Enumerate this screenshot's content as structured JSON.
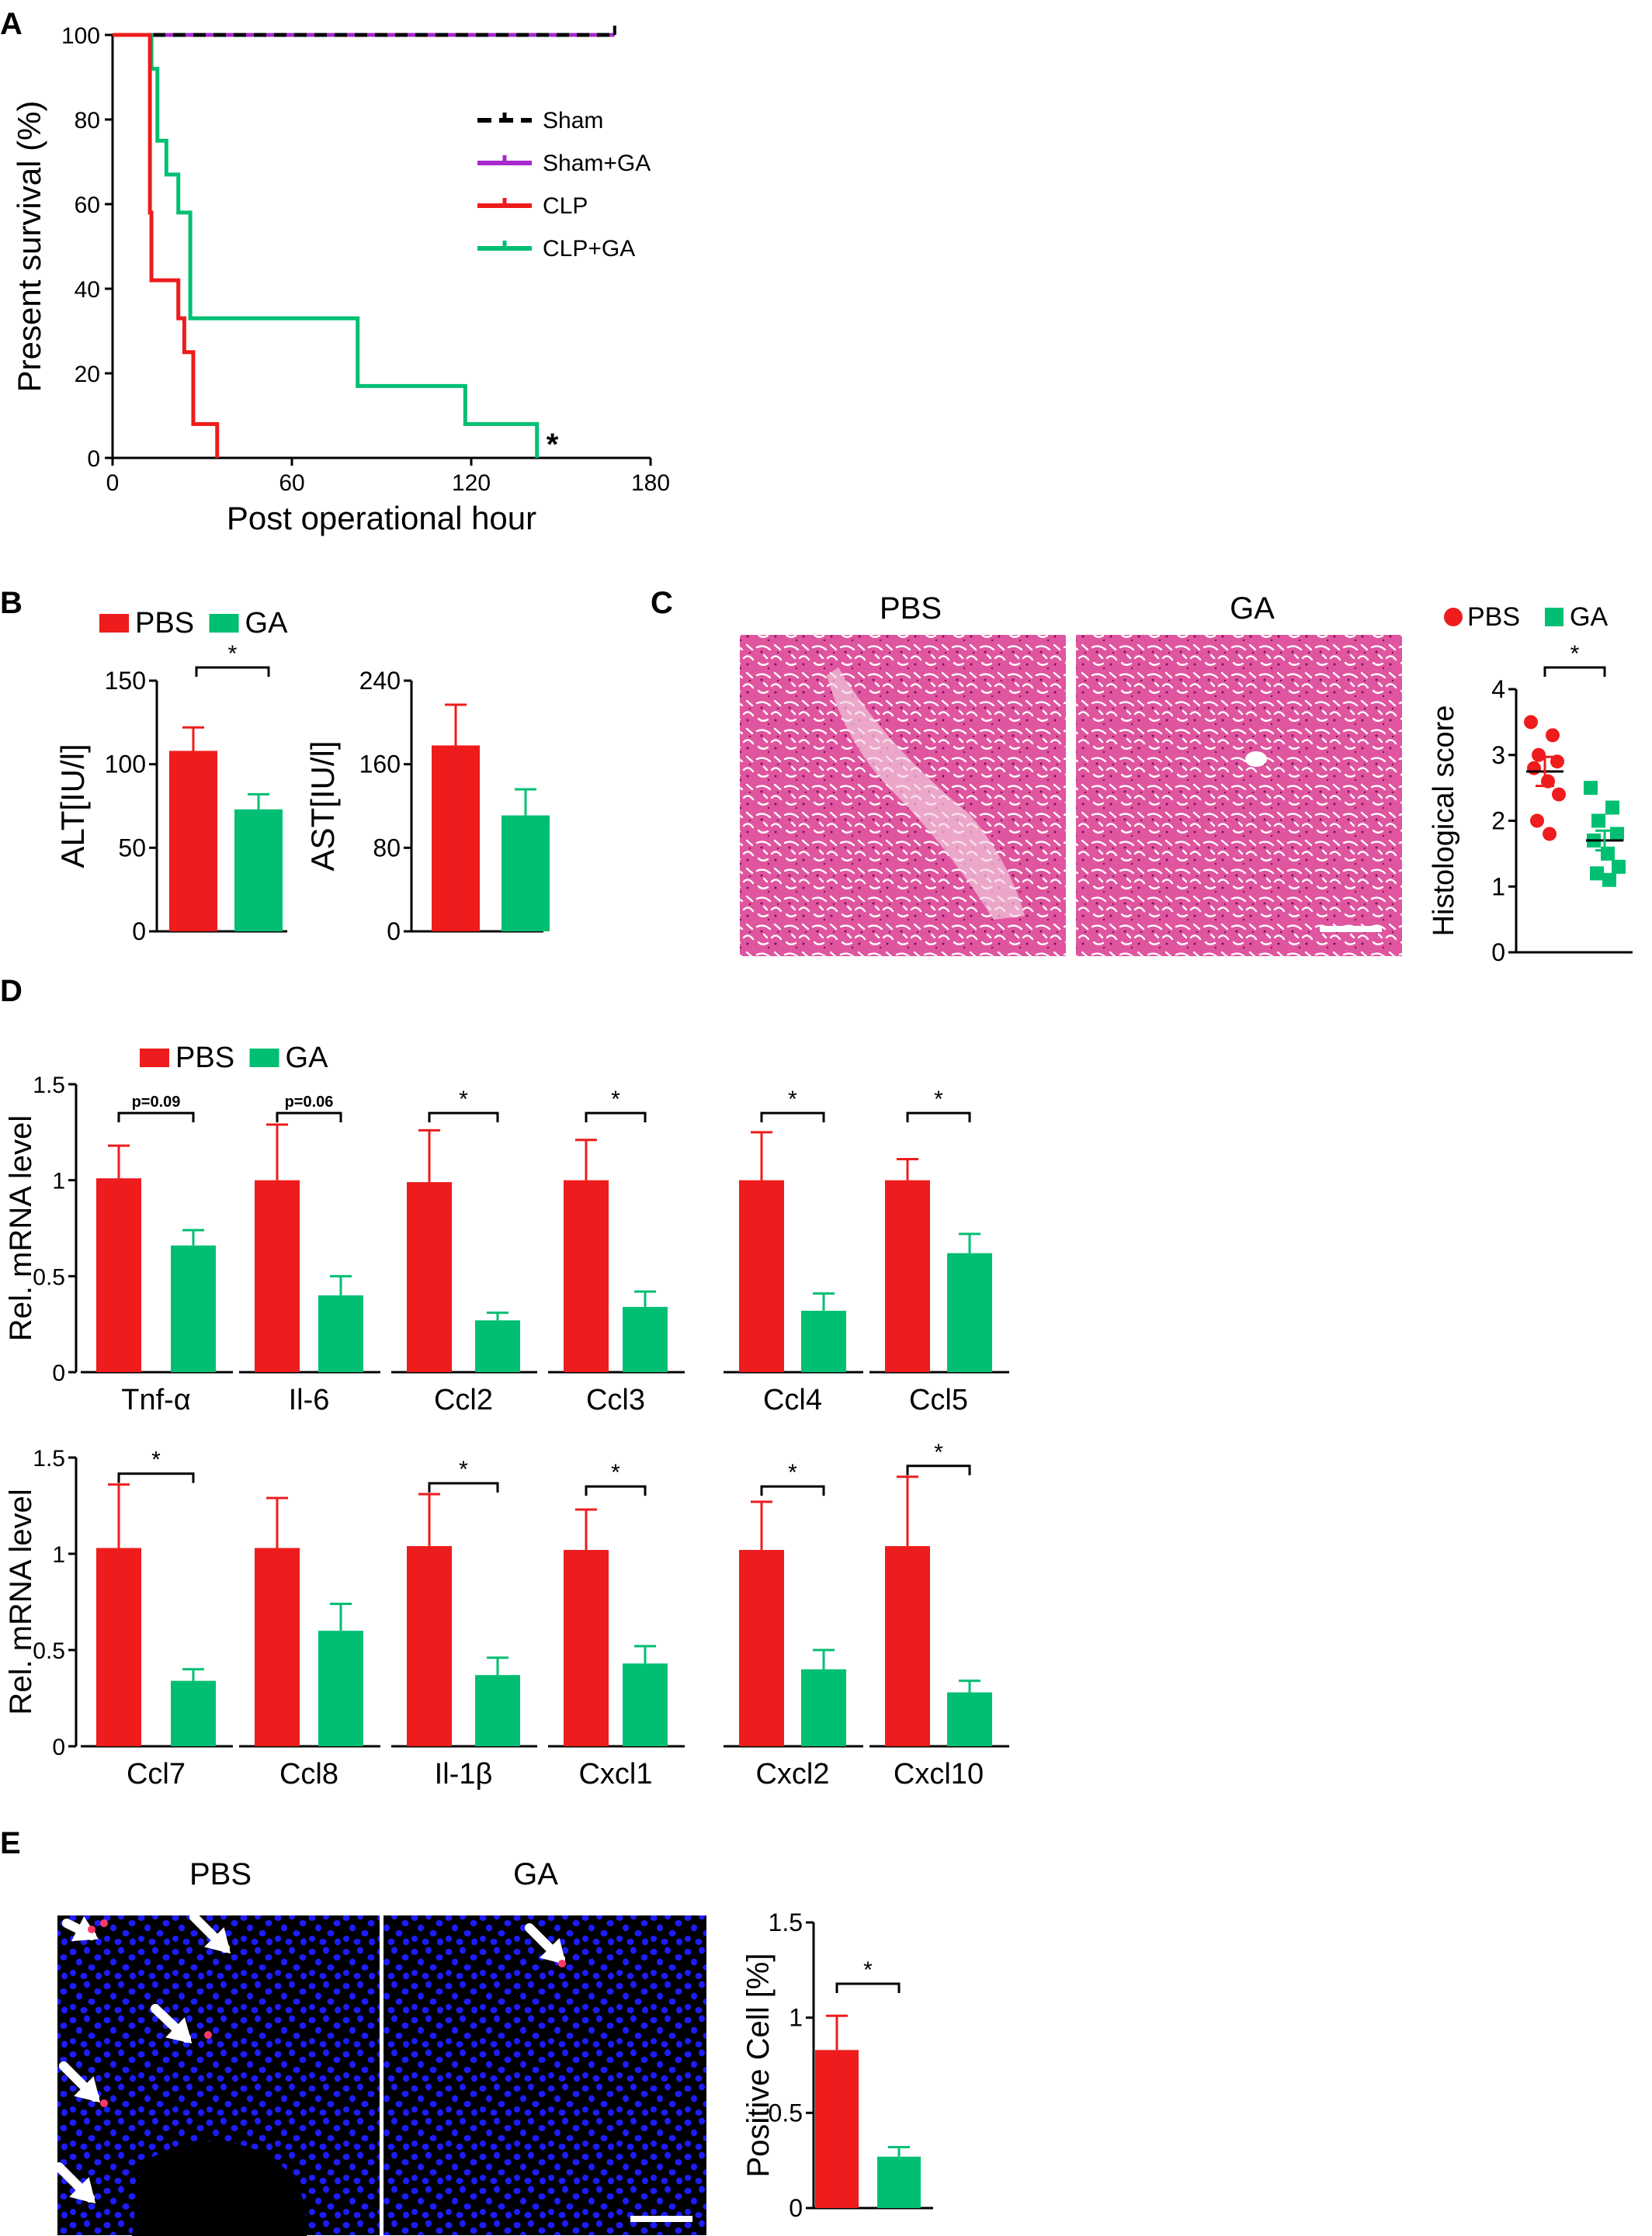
{
  "colors": {
    "red": "#ee1c1c",
    "green": "#00bf72",
    "purple": "#a829ce",
    "black": "#000000",
    "he_pink": "#e0559f",
    "nuclei_blue": "#1c1cff"
  },
  "icons": [
    "white-arrow-icon",
    "scale-bar"
  ],
  "panels": {
    "A": {
      "letter": "A"
    },
    "B": {
      "letter": "B",
      "legend": [
        "PBS",
        "GA"
      ]
    },
    "C": {
      "letter": "C",
      "image_labels": [
        "PBS",
        "GA"
      ],
      "legend": [
        "PBS",
        "GA"
      ]
    },
    "D": {
      "letter": "D",
      "legend": [
        "PBS",
        "GA"
      ]
    },
    "E": {
      "letter": "E",
      "image_labels": [
        "PBS",
        "GA"
      ]
    }
  },
  "chart_data": [
    {
      "id": "A",
      "type": "line",
      "xlabel": "Post operational hour",
      "ylabel": "Present survival (%)",
      "xlim": [
        0,
        180
      ],
      "ylim": [
        0,
        100
      ],
      "xticks": [
        0,
        60,
        120,
        180
      ],
      "yticks": [
        0,
        20,
        40,
        60,
        80,
        100
      ],
      "annotation": "*",
      "legend_position": "right",
      "series": [
        {
          "name": "Sham",
          "color": "#000000",
          "dash": true,
          "x": [
            0,
            168
          ],
          "y": [
            100,
            100
          ]
        },
        {
          "name": "Sham+GA",
          "color": "#a829ce",
          "dash": false,
          "x": [
            0,
            168
          ],
          "y": [
            100,
            100
          ]
        },
        {
          "name": "CLP",
          "color": "#ee1c1c",
          "x": [
            0,
            12,
            12.5,
            13,
            20,
            22,
            24,
            27,
            35
          ],
          "y": [
            100,
            100,
            58,
            42,
            42,
            33,
            25,
            8,
            0
          ]
        },
        {
          "name": "CLP+GA",
          "color": "#00bf72",
          "x": [
            0,
            12,
            13,
            15,
            18,
            22,
            26,
            75,
            82,
            118,
            142
          ],
          "y": [
            100,
            100,
            92,
            75,
            67,
            58,
            33,
            33,
            17,
            8,
            0
          ]
        }
      ]
    },
    {
      "id": "B-ALT",
      "type": "bar",
      "ylabel": "ALT[IU/l]",
      "ylim": [
        0,
        150
      ],
      "yticks": [
        0,
        50,
        100,
        150
      ],
      "categories": [
        "PBS",
        "GA"
      ],
      "values": [
        108,
        73
      ],
      "errors": [
        14,
        9
      ],
      "sig": [
        {
          "label": "*",
          "from": 0,
          "to": 1
        }
      ]
    },
    {
      "id": "B-AST",
      "type": "bar",
      "ylabel": "AST[IU/l]",
      "ylim": [
        0,
        240
      ],
      "yticks": [
        0,
        80,
        160,
        240
      ],
      "categories": [
        "PBS",
        "GA"
      ],
      "values": [
        178,
        111
      ],
      "errors": [
        39,
        25
      ],
      "sig": []
    },
    {
      "id": "C-score",
      "type": "scatter",
      "ylabel": "Histological score",
      "ylim": [
        0,
        4
      ],
      "yticks": [
        0,
        1,
        2,
        3,
        4
      ],
      "categories": [
        "PBS",
        "GA"
      ],
      "points": [
        [
          3.5,
          3.3,
          3.0,
          2.9,
          2.8,
          2.6,
          2.4,
          2.0,
          1.8
        ],
        [
          2.5,
          2.2,
          2.0,
          1.8,
          1.7,
          1.5,
          1.3,
          1.2,
          1.1
        ]
      ],
      "mean": [
        2.75,
        1.7
      ],
      "sem": [
        0.22,
        0.15
      ],
      "sig": [
        {
          "label": "*",
          "from": 0,
          "to": 1
        }
      ]
    },
    {
      "id": "D-top",
      "type": "bar",
      "ylabel": "Rel. mRNA level",
      "ylim": [
        0,
        1.5
      ],
      "yticks": [
        0,
        0.5,
        1,
        1.5
      ],
      "ytick_labels": [
        "0",
        "0.5",
        "1",
        "1.5"
      ],
      "categories": [
        "Tnf-α",
        "Il-6",
        "Ccl2",
        "Ccl3",
        "Ccl4",
        "Ccl5"
      ],
      "series": [
        {
          "name": "PBS",
          "values": [
            1.01,
            1.0,
            0.99,
            1.0,
            1.0,
            1.0
          ],
          "errors": [
            0.17,
            0.29,
            0.27,
            0.21,
            0.25,
            0.11
          ]
        },
        {
          "name": "GA",
          "values": [
            0.66,
            0.4,
            0.27,
            0.34,
            0.32,
            0.62
          ],
          "errors": [
            0.08,
            0.1,
            0.04,
            0.08,
            0.09,
            0.1
          ]
        }
      ],
      "sig": [
        "p=0.09",
        "p=0.06",
        "*",
        "*",
        "*",
        "*"
      ]
    },
    {
      "id": "D-bottom",
      "type": "bar",
      "ylabel": "Rel. mRNA level",
      "ylim": [
        0,
        1.5
      ],
      "yticks": [
        0,
        0.5,
        1,
        1.5
      ],
      "ytick_labels": [
        "0",
        "0.5",
        "1",
        "1.5"
      ],
      "categories": [
        "Ccl7",
        "Ccl8",
        "Il-1β",
        "Cxcl1",
        "Cxcl2",
        "Cxcl10"
      ],
      "series": [
        {
          "name": "PBS",
          "values": [
            1.03,
            1.03,
            1.04,
            1.02,
            1.02,
            1.04
          ],
          "errors": [
            0.33,
            0.26,
            0.27,
            0.21,
            0.25,
            0.36
          ]
        },
        {
          "name": "GA",
          "values": [
            0.34,
            0.6,
            0.37,
            0.43,
            0.4,
            0.28
          ],
          "errors": [
            0.06,
            0.14,
            0.09,
            0.09,
            0.1,
            0.06
          ]
        }
      ],
      "sig": [
        "*",
        "",
        "*",
        "*",
        "*",
        "*"
      ]
    },
    {
      "id": "E-bar",
      "type": "bar",
      "ylabel": "Positive Cell [%]",
      "ylim": [
        0,
        1.5
      ],
      "yticks": [
        0,
        0.5,
        1,
        1.5
      ],
      "ytick_labels": [
        "0",
        "0.5",
        "1",
        "1.5"
      ],
      "categories": [
        "PBS",
        "GA"
      ],
      "values": [
        0.83,
        0.27
      ],
      "errors": [
        0.18,
        0.05
      ],
      "sig": [
        {
          "label": "*",
          "from": 0,
          "to": 1
        }
      ]
    }
  ]
}
